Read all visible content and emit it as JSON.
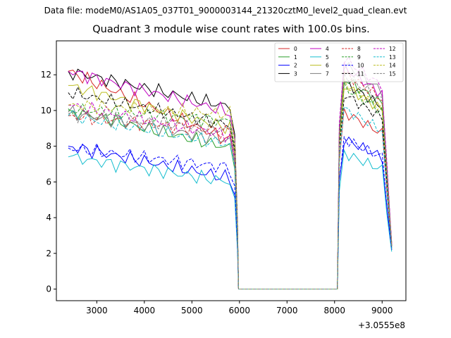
{
  "suptitle": "Data file: modeM0/AS1A05_037T01_9000003144_21320cztM0_level2_quad_clean.evt",
  "chart_data": {
    "type": "line",
    "title": "Quadrant 3 module wise count rates with 100.0s bins.",
    "xlabel": "",
    "ylabel": "",
    "x_offset_label": "+3.0555e8",
    "xlim": [
      2150,
      9500
    ],
    "ylim": [
      -0.65,
      13.9
    ],
    "xticks": [
      3000,
      4000,
      5000,
      6000,
      7000,
      8000,
      9000
    ],
    "xtick_labels": [
      "3000",
      "4000",
      "5000",
      "6000",
      "7000",
      "8000",
      "9000"
    ],
    "yticks": [
      0,
      2,
      4,
      6,
      8,
      10,
      12
    ],
    "ytick_labels": [
      "0",
      "2",
      "4",
      "6",
      "8",
      "10",
      "12"
    ],
    "legend_position": "top-right",
    "series": [
      {
        "name": "0",
        "color": "#d62728",
        "dash": "solid",
        "levels": [
          12.2,
          8.3,
          9.9,
          2.2
        ]
      },
      {
        "name": "1",
        "color": "#2ca02c",
        "dash": "solid",
        "levels": [
          10.0,
          7.9,
          11.8,
          2.3
        ]
      },
      {
        "name": "2",
        "color": "#0000ff",
        "dash": "solid",
        "levels": [
          8.0,
          6.2,
          8.4,
          2.2
        ]
      },
      {
        "name": "3",
        "color": "#000000",
        "dash": "solid",
        "levels": [
          12.2,
          10.2,
          11.6,
          2.6
        ]
      },
      {
        "name": "4",
        "color": "#c000c0",
        "dash": "solid",
        "levels": [
          12.2,
          9.9,
          12.4,
          2.5
        ]
      },
      {
        "name": "5",
        "color": "#17becf",
        "dash": "solid",
        "levels": [
          7.4,
          6.0,
          7.6,
          2.1
        ]
      },
      {
        "name": "6",
        "color": "#bcbd22",
        "dash": "solid",
        "levels": [
          11.4,
          9.0,
          11.4,
          2.4
        ]
      },
      {
        "name": "7",
        "color": "#7f7f7f",
        "dash": "solid",
        "levels": [
          9.9,
          8.3,
          12.6,
          2.4
        ]
      },
      {
        "name": "8",
        "color": "#d62728",
        "dash": "dashed",
        "levels": [
          9.7,
          8.8,
          12.1,
          2.4
        ]
      },
      {
        "name": "9",
        "color": "#2ca02c",
        "dash": "dashed",
        "levels": [
          10.1,
          9.4,
          11.3,
          2.3
        ]
      },
      {
        "name": "10",
        "color": "#0000ff",
        "dash": "dashed",
        "levels": [
          7.9,
          6.8,
          8.4,
          2.2
        ]
      },
      {
        "name": "11",
        "color": "#000000",
        "dash": "dashed",
        "levels": [
          11.0,
          9.2,
          10.9,
          2.4
        ]
      },
      {
        "name": "12",
        "color": "#c000c0",
        "dash": "dashed",
        "levels": [
          10.3,
          8.6,
          12.9,
          2.5
        ]
      },
      {
        "name": "13",
        "color": "#17becf",
        "dash": "dashed",
        "levels": [
          9.7,
          8.1,
          10.1,
          2.3
        ]
      },
      {
        "name": "14",
        "color": "#bcbd22",
        "dash": "dashed",
        "levels": [
          10.3,
          9.8,
          11.5,
          2.4
        ]
      },
      {
        "name": "15",
        "color": "#7f7f7f",
        "dash": "dashed",
        "levels": [
          9.8,
          8.9,
          12.0,
          2.4
        ]
      }
    ],
    "segments": {
      "active1": {
        "x_start": 2400,
        "x_end": 5800,
        "step": 100
      },
      "drop": [
        {
          "x": 5900,
          "factor": 0.85
        },
        {
          "x": 5960,
          "factor": 0.35
        }
      ],
      "gap": {
        "x_start": 5980,
        "x_end": 8060,
        "value": 0
      },
      "active2": {
        "x_start": 8100,
        "x_end": 9200,
        "step": 100
      },
      "level_keys": "levels = [first-segment start, first-segment end, second-segment peak, final value]"
    }
  }
}
